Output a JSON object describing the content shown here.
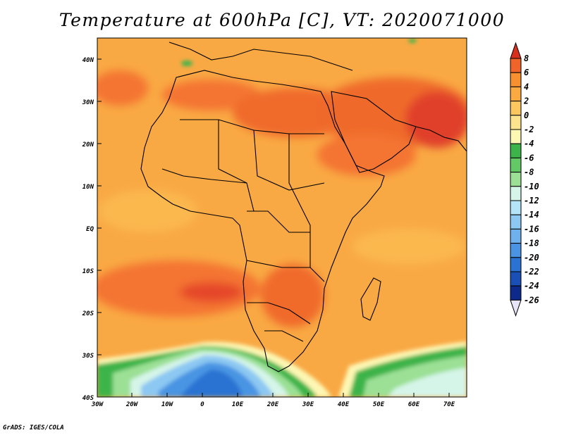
{
  "title": "Temperature at 600hPa [C], VT: 2020071000",
  "credit": "GrADS: IGES/COLA",
  "map": {
    "region": "Africa",
    "lat_labels": [
      "40N",
      "30N",
      "20N",
      "10N",
      "EQ",
      "10S",
      "20S",
      "30S",
      "40S"
    ],
    "lon_labels": [
      "30W",
      "20W",
      "10W",
      "0",
      "10E",
      "20E",
      "30E",
      "40E",
      "50E",
      "60E",
      "70E"
    ],
    "colors": {
      "background_warm": "#f7a640",
      "hot": "#f47430",
      "very_hot": "#e8482a",
      "cool_green": "#3fb950",
      "light_green": "#8de08a",
      "pale_blue": "#cfeffc",
      "blue": "#3b7fe0",
      "coastline": "#000000"
    }
  },
  "colorbar": {
    "labels": [
      "8",
      "6",
      "4",
      "2",
      "0",
      "-2",
      "-4",
      "-6",
      "-8",
      "-10",
      "-12",
      "-14",
      "-16",
      "-18",
      "-20",
      "-22",
      "-24",
      "-26"
    ],
    "colors": [
      "#d7301f",
      "#f0642a",
      "#f7902f",
      "#fbaa42",
      "#fdc760",
      "#fde38e",
      "#fdf7b4",
      "#3cb44a",
      "#63c866",
      "#9be095",
      "#d5f5e8",
      "#b4e4f7",
      "#8cc8f2",
      "#6fb1ec",
      "#4a94e3",
      "#2b73d2",
      "#1a4fb5",
      "#0d2a8a",
      "#08155a"
    ]
  }
}
